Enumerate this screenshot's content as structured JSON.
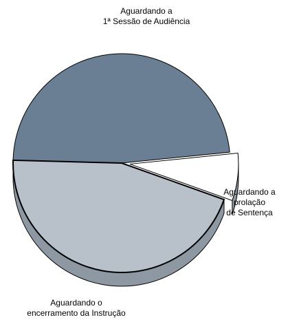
{
  "chart_data": {
    "type": "pie",
    "style": "3d-exploded",
    "title": "",
    "slices": [
      {
        "label_lines": [
          "Aguardando a",
          "1ª Sessão de Audiência"
        ],
        "value": 48,
        "color": "#6a7f94"
      },
      {
        "label_lines": [
          "Aguardando o",
          "encerramento da Instrução"
        ],
        "value": 45,
        "color": "#b8c1ca"
      },
      {
        "label_lines": [
          "Aguardando a",
          "prolação",
          "de Sentença"
        ],
        "value": 7,
        "color": "#ffffff"
      }
    ],
    "outline_color": "#000000",
    "side_color": "#8e98a2",
    "legend": "none"
  }
}
